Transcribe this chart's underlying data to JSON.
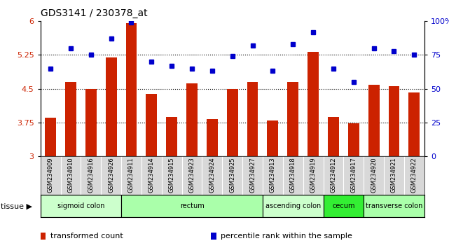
{
  "title": "GDS3141 / 230378_at",
  "samples": [
    "GSM234909",
    "GSM234910",
    "GSM234916",
    "GSM234926",
    "GSM234911",
    "GSM234914",
    "GSM234915",
    "GSM234923",
    "GSM234924",
    "GSM234925",
    "GSM234927",
    "GSM234913",
    "GSM234918",
    "GSM234919",
    "GSM234912",
    "GSM234917",
    "GSM234920",
    "GSM234921",
    "GSM234922"
  ],
  "bar_values": [
    3.85,
    4.65,
    4.5,
    5.2,
    5.95,
    4.38,
    3.87,
    4.62,
    3.82,
    4.5,
    4.65,
    3.8,
    4.65,
    5.32,
    3.87,
    3.73,
    4.58,
    4.55,
    4.42
  ],
  "dot_values": [
    65,
    80,
    75,
    87,
    99,
    70,
    67,
    65,
    63,
    74,
    82,
    63,
    83,
    92,
    65,
    55,
    80,
    78,
    75
  ],
  "bar_color": "#cc2200",
  "dot_color": "#0000cc",
  "ylim_left": [
    3.0,
    6.0
  ],
  "ylim_right": [
    0,
    100
  ],
  "yticks_left": [
    3.0,
    3.75,
    4.5,
    5.25,
    6.0
  ],
  "ytick_labels_left": [
    "3",
    "3.75",
    "4.5",
    "5.25",
    "6"
  ],
  "yticks_right": [
    0,
    25,
    50,
    75,
    100
  ],
  "ytick_labels_right": [
    "0",
    "25",
    "50",
    "75",
    "100%"
  ],
  "hlines": [
    3.75,
    4.5,
    5.25
  ],
  "tissue_groups": [
    {
      "label": "sigmoid colon",
      "start": 0,
      "end": 4,
      "color": "#ccffcc"
    },
    {
      "label": "rectum",
      "start": 4,
      "end": 11,
      "color": "#aaffaa"
    },
    {
      "label": "ascending colon",
      "start": 11,
      "end": 14,
      "color": "#ccffcc"
    },
    {
      "label": "cecum",
      "start": 14,
      "end": 16,
      "color": "#33ee33"
    },
    {
      "label": "transverse colon",
      "start": 16,
      "end": 19,
      "color": "#aaffaa"
    }
  ],
  "legend_items": [
    {
      "label": "transformed count",
      "color": "#cc2200"
    },
    {
      "label": "percentile rank within the sample",
      "color": "#0000cc"
    }
  ],
  "bar_width": 0.55,
  "bg_color": "#d8d8d8"
}
